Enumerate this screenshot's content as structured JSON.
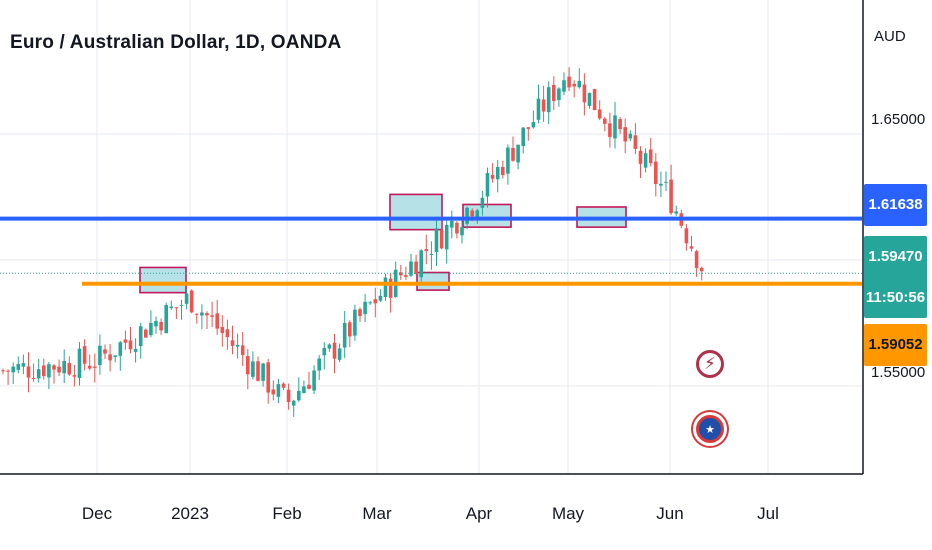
{
  "chart_data": {
    "type": "candlestick",
    "title": "Euro / Australian Dollar, 1D, OANDA",
    "currency": "AUD",
    "y_ticks": [
      "1.65000",
      "1.55000"
    ],
    "x_ticks": [
      "Dec",
      "2023",
      "Feb",
      "Mar",
      "Apr",
      "May",
      "Jun",
      "Jul"
    ],
    "ylim": [
      1.515,
      1.7
    ],
    "levels": [
      {
        "label": "1.61638",
        "value": 1.61638,
        "color": "#2962ff"
      },
      {
        "label": "1.59052",
        "value": 1.59052,
        "color": "#ff9800"
      }
    ],
    "last_price": {
      "label": "1.59470",
      "value": 1.5947,
      "countdown": "11:50:56",
      "color": "#26a69a"
    },
    "anchors": [
      {
        "label": "Dec",
        "value": 1.56
      },
      {
        "label": "2023",
        "value": 1.585
      },
      {
        "label": "Feb",
        "value": 1.543
      },
      {
        "label": "Mar",
        "value": 1.585
      },
      {
        "label": "Apr",
        "value": 1.625
      },
      {
        "label": "May",
        "value": 1.675
      },
      {
        "label": "Jun",
        "value": 1.625
      }
    ],
    "highlight_zones": [
      {
        "start": "Dec",
        "low": 1.587,
        "high": 1.597
      },
      {
        "start": "Mar",
        "low": 1.612,
        "high": 1.626
      },
      {
        "start": "Mar",
        "low": 1.588,
        "high": 1.595
      },
      {
        "start": "Apr",
        "low": 1.613,
        "high": 1.622
      },
      {
        "start": "May",
        "low": 1.613,
        "high": 1.621
      }
    ],
    "colors": {
      "up": "#26a69a",
      "down": "#ef5350",
      "zone": "#a9dce3",
      "zone_border": "#c2185b"
    }
  },
  "icons": {
    "bolt": "lightning-icon",
    "flag": "flag-event-icon"
  }
}
